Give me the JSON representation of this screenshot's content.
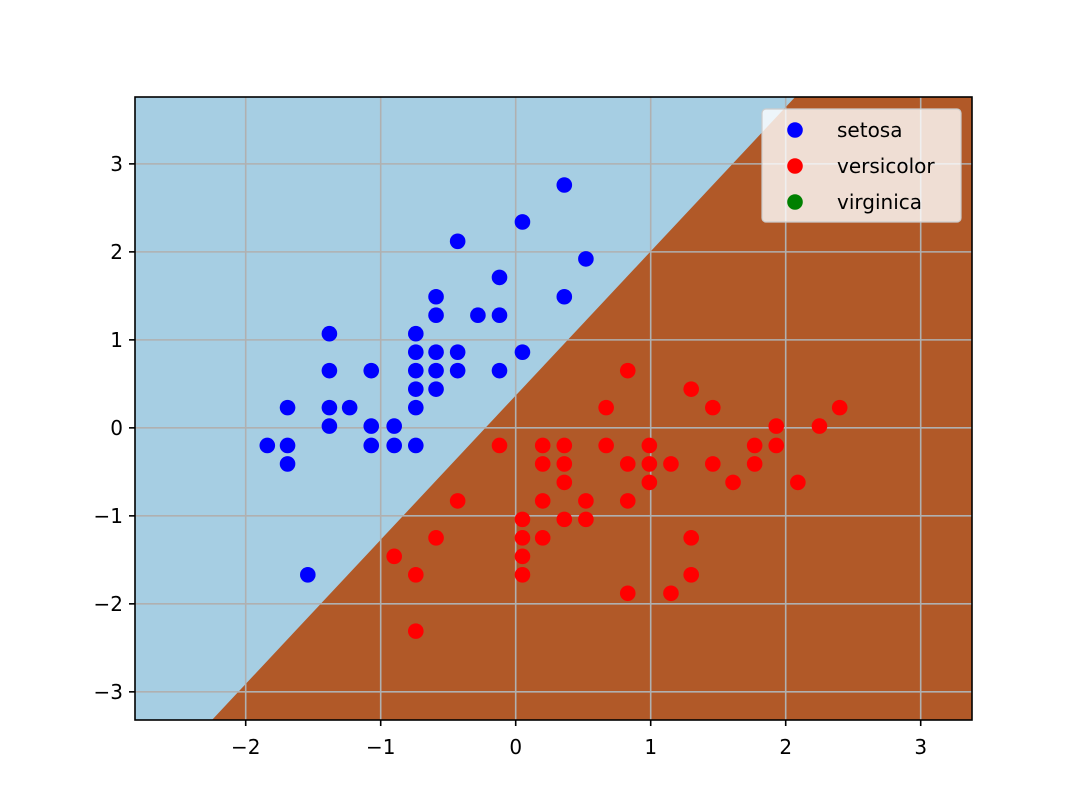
{
  "chart_data": {
    "type": "scatter",
    "title": "",
    "xlabel": "",
    "ylabel": "",
    "xlim": [
      -2.82,
      3.38
    ],
    "ylim": [
      -3.32,
      3.76
    ],
    "xticks": [
      -2,
      -1,
      0,
      1,
      2,
      3
    ],
    "yticks": [
      -3,
      -2,
      -1,
      0,
      1,
      2,
      3
    ],
    "xtick_labels": [
      "−2",
      "−1",
      "0",
      "1",
      "2",
      "3"
    ],
    "ytick_labels": [
      "−3",
      "−2",
      "−1",
      "0",
      "1",
      "2",
      "3"
    ],
    "grid": true,
    "legend_position": "upper-right",
    "background_regions": [
      {
        "name": "setosa-region",
        "color": "#a6cee3"
      },
      {
        "name": "versicolor-region",
        "color": "#b15928"
      }
    ],
    "decision_boundary": {
      "x": [
        -2.25,
        2.07
      ],
      "y": [
        -3.32,
        3.76
      ]
    },
    "series": [
      {
        "name": "setosa",
        "color": "#0000ff",
        "points": [
          [
            -1.84,
            -0.2
          ],
          [
            -1.69,
            -0.2
          ],
          [
            -1.69,
            -0.41
          ],
          [
            -1.69,
            0.23
          ],
          [
            -1.54,
            -1.67
          ],
          [
            -1.38,
            1.07
          ],
          [
            -1.38,
            0.65
          ],
          [
            -1.38,
            0.23
          ],
          [
            -1.38,
            0.02
          ],
          [
            -1.23,
            0.23
          ],
          [
            -1.07,
            0.65
          ],
          [
            -1.07,
            0.02
          ],
          [
            -1.07,
            -0.2
          ],
          [
            -0.9,
            0.02
          ],
          [
            -0.9,
            -0.2
          ],
          [
            -0.74,
            1.07
          ],
          [
            -0.74,
            0.86
          ],
          [
            -0.74,
            0.65
          ],
          [
            -0.74,
            0.44
          ],
          [
            -0.74,
            0.23
          ],
          [
            -0.74,
            -0.2
          ],
          [
            -0.59,
            1.49
          ],
          [
            -0.59,
            1.28
          ],
          [
            -0.59,
            0.86
          ],
          [
            -0.59,
            0.65
          ],
          [
            -0.59,
            0.44
          ],
          [
            -0.43,
            2.12
          ],
          [
            -0.43,
            0.86
          ],
          [
            -0.43,
            0.65
          ],
          [
            -0.28,
            1.28
          ],
          [
            -0.12,
            1.71
          ],
          [
            -0.12,
            1.28
          ],
          [
            -0.12,
            0.65
          ],
          [
            0.05,
            2.34
          ],
          [
            0.05,
            0.86
          ],
          [
            0.36,
            2.76
          ],
          [
            0.36,
            1.49
          ],
          [
            0.52,
            1.92
          ]
        ]
      },
      {
        "name": "versicolor",
        "color": "#ff0000",
        "points": [
          [
            -0.9,
            -1.46
          ],
          [
            -0.74,
            -1.67
          ],
          [
            -0.74,
            -2.31
          ],
          [
            -0.59,
            -1.25
          ],
          [
            -0.43,
            -0.83
          ],
          [
            -0.12,
            -0.2
          ],
          [
            0.05,
            -1.04
          ],
          [
            0.05,
            -1.25
          ],
          [
            0.05,
            -1.46
          ],
          [
            0.05,
            -1.67
          ],
          [
            0.2,
            -0.2
          ],
          [
            0.2,
            -0.41
          ],
          [
            0.2,
            -0.83
          ],
          [
            0.2,
            -1.25
          ],
          [
            0.36,
            -0.2
          ],
          [
            0.36,
            -0.41
          ],
          [
            0.36,
            -0.62
          ],
          [
            0.36,
            -1.04
          ],
          [
            0.52,
            -0.83
          ],
          [
            0.52,
            -1.04
          ],
          [
            0.67,
            0.23
          ],
          [
            0.67,
            -0.2
          ],
          [
            0.83,
            0.65
          ],
          [
            0.83,
            -0.41
          ],
          [
            0.83,
            -0.83
          ],
          [
            0.83,
            -1.88
          ],
          [
            0.99,
            -0.2
          ],
          [
            0.99,
            -0.41
          ],
          [
            0.99,
            -0.62
          ],
          [
            1.15,
            -0.41
          ],
          [
            1.15,
            -1.88
          ],
          [
            1.3,
            0.44
          ],
          [
            1.3,
            -1.25
          ],
          [
            1.3,
            -1.67
          ],
          [
            1.46,
            0.23
          ],
          [
            1.46,
            -0.41
          ],
          [
            1.61,
            -0.62
          ],
          [
            1.77,
            -0.2
          ],
          [
            1.77,
            -0.41
          ],
          [
            1.93,
            0.02
          ],
          [
            1.93,
            -0.2
          ],
          [
            2.09,
            -0.62
          ],
          [
            2.25,
            0.02
          ],
          [
            2.4,
            0.23
          ]
        ]
      },
      {
        "name": "virginica",
        "color": "#008000",
        "points": []
      }
    ]
  }
}
